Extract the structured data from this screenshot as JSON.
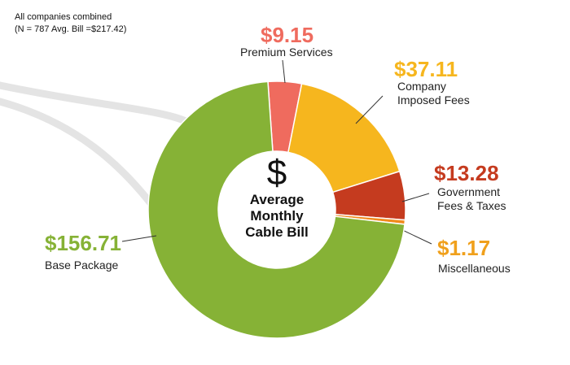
{
  "chart_data": {
    "type": "donut",
    "note": "All companies combined\n(N = 787 Avg. Bill =$217.42)",
    "center_symbol": "$",
    "center_label": "Average\nMonthly\nCable Bill",
    "categories": [
      "Premium Services",
      "Company\nImposed Fees",
      "Government\nFees & Taxes",
      "Miscellaneous",
      "Base Package"
    ],
    "values": [
      9.15,
      37.11,
      13.28,
      1.17,
      156.71
    ],
    "value_labels": [
      "$9.15",
      "$37.11",
      "$13.28",
      "$1.17",
      "$156.71"
    ],
    "colors": [
      "#ef6b5e",
      "#f6b61e",
      "#c53b1f",
      "#f08a1c",
      "#86b236"
    ]
  }
}
